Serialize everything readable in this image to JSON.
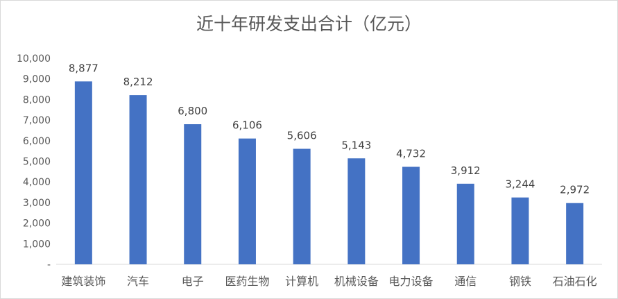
{
  "chart_data": {
    "type": "bar",
    "title": "近十年研发支出合计（亿元）",
    "xlabel": "",
    "ylabel": "",
    "categories": [
      "建筑装饰",
      "汽车",
      "电子",
      "医药生物",
      "计算机",
      "机械设备",
      "电力设备",
      "通信",
      "钢铁",
      "石油石化"
    ],
    "values": [
      8877,
      8212,
      6800,
      6106,
      5606,
      5143,
      4732,
      3912,
      3244,
      2972
    ],
    "data_labels": [
      "8,877",
      "8,212",
      "6,800",
      "6,106",
      "5,606",
      "5,143",
      "4,732",
      "3,912",
      "3,244",
      "2,972"
    ],
    "ylim": [
      0,
      10000
    ],
    "yticks": [
      "-",
      "1,000",
      "2,000",
      "3,000",
      "4,000",
      "5,000",
      "6,000",
      "7,000",
      "8,000",
      "9,000",
      "10,000"
    ],
    "grid": false,
    "legend": "none",
    "colors": {
      "bar": "#4472c4",
      "text": "#595959",
      "axis": "#d9d9d9"
    }
  }
}
